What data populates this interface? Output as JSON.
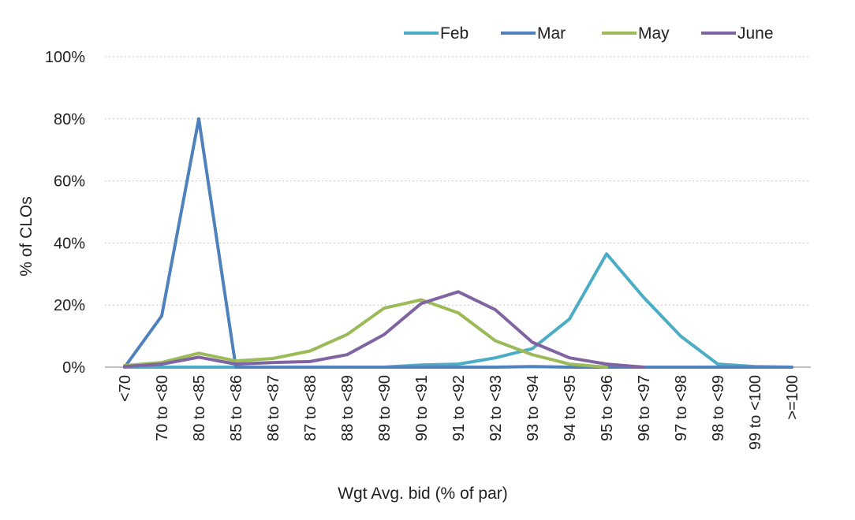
{
  "chart_data": {
    "type": "line",
    "xlabel": "Wgt Avg. bid (% of par)",
    "ylabel": "% of CLOs",
    "ylim": [
      0,
      100
    ],
    "y_ticks": [
      0,
      20,
      40,
      60,
      80,
      100
    ],
    "y_tick_labels": [
      "0%",
      "20%",
      "40%",
      "60%",
      "80%",
      "100%"
    ],
    "grid": true,
    "legend_position": "top",
    "categories": [
      "<70",
      "70 to <80",
      "80 to <85",
      "85 to <86",
      "86 to <87",
      "87 to <88",
      "88 to <89",
      "89 to <90",
      "90 to <91",
      "91 to <92",
      "92 to <93",
      "93 to <94",
      "94 to <95",
      "95 to <96",
      "96 to <97",
      "97 to <98",
      "98 to <99",
      "99 to <100",
      ">=100"
    ],
    "series": [
      {
        "name": "Feb",
        "color": "#4bacc6",
        "values": [
          0,
          0,
          0,
          0,
          0,
          0,
          0,
          0,
          0.7,
          1,
          3,
          6,
          15.5,
          36.5,
          22.5,
          10,
          1,
          0.2,
          0
        ]
      },
      {
        "name": "Mar",
        "color": "#4f81bd",
        "values": [
          0,
          16.5,
          80,
          0,
          0,
          0,
          0,
          0,
          0,
          0,
          0,
          0.2,
          0,
          0,
          0,
          0,
          0,
          0,
          0
        ]
      },
      {
        "name": "May",
        "color": "#9bbb59",
        "values": [
          0.5,
          1.5,
          4.5,
          2,
          2.8,
          5.2,
          10.5,
          19,
          21.7,
          17.5,
          8.5,
          4,
          1,
          0,
          null,
          null,
          null,
          null,
          null
        ]
      },
      {
        "name": "June",
        "color": "#8064a2",
        "values": [
          0.2,
          1,
          3.2,
          1,
          1.5,
          1.8,
          4,
          10.5,
          20.5,
          24.3,
          18.5,
          8,
          3,
          1,
          0,
          null,
          null,
          null,
          null
        ]
      }
    ]
  }
}
